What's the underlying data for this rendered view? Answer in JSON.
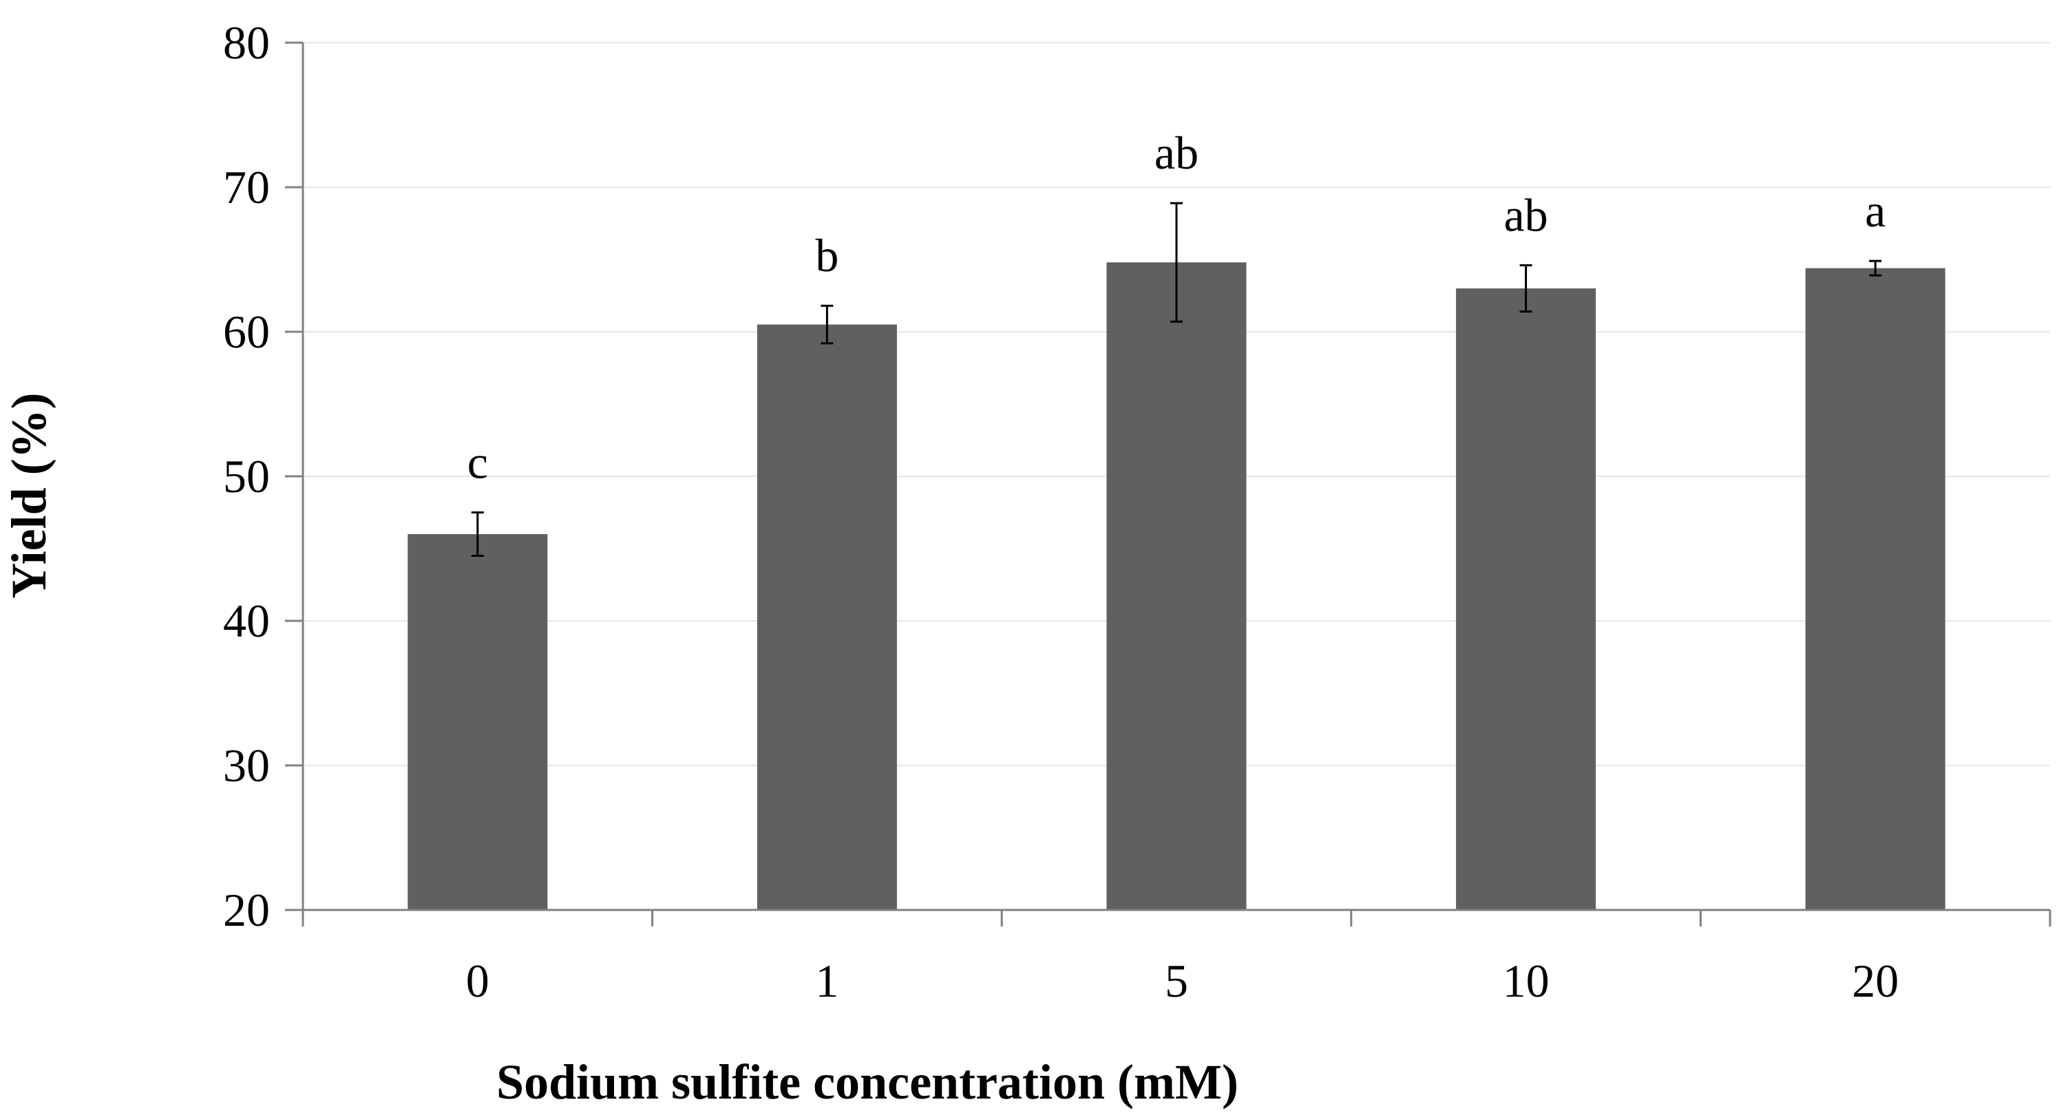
{
  "chart_data": {
    "type": "bar",
    "title": "",
    "xlabel": "Sodium sulfite concentration (mM)",
    "ylabel": "Yield (%)",
    "categories": [
      "0",
      "1",
      "5",
      "10",
      "20"
    ],
    "values": [
      46.0,
      60.5,
      64.8,
      63.0,
      64.4
    ],
    "errors": [
      1.5,
      1.3,
      4.1,
      1.6,
      0.5
    ],
    "significance_letters": [
      "c",
      "b",
      "ab",
      "ab",
      "a"
    ],
    "ylim": [
      20,
      80
    ],
    "yticks": [
      20,
      30,
      40,
      50,
      60,
      70,
      80
    ],
    "grid": true,
    "bar_color": "#606060",
    "grid_color": "#e6e6e6",
    "axis_color": "#808080"
  }
}
